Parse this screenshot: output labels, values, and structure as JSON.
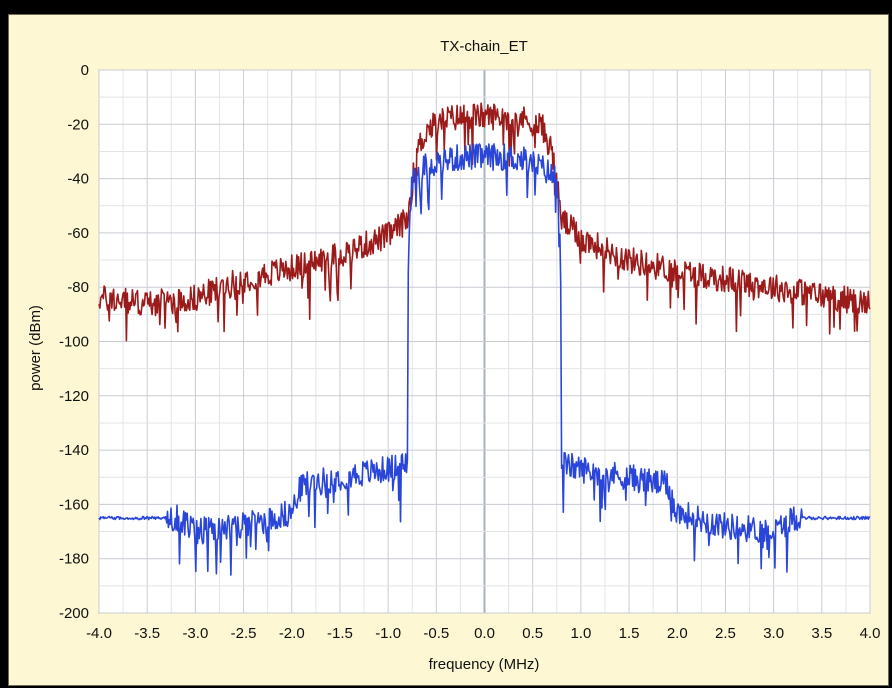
{
  "chart_data": {
    "type": "line",
    "title": "TX-chain_ET",
    "xlabel": "frequency (MHz)",
    "ylabel": "power (dBm)",
    "xlim": [
      -4.0,
      4.0
    ],
    "ylim": [
      -200,
      0
    ],
    "grid": true,
    "x_ticks": [
      -4.0,
      -3.5,
      -3.0,
      -2.5,
      -2.0,
      -1.5,
      -1.0,
      -0.5,
      0.0,
      0.5,
      1.0,
      1.5,
      2.0,
      2.5,
      3.0,
      3.5,
      4.0
    ],
    "x_tick_labels": [
      "-4.0",
      "-3.5",
      "-3.0",
      "-2.5",
      "-2.0",
      "-1.5",
      "-1.0",
      "-0.5",
      "0.0",
      "0.5",
      "1.0",
      "1.5",
      "2.0",
      "2.5",
      "3.0",
      "3.5",
      "4.0"
    ],
    "y_ticks": [
      0,
      -20,
      -40,
      -60,
      -80,
      -100,
      -120,
      -140,
      -160,
      -180,
      -200
    ],
    "y_tick_labels": [
      "0",
      "-20",
      "-40",
      "-60",
      "-80",
      "-100",
      "-120",
      "-140",
      "-160",
      "-180",
      "-200"
    ],
    "series": [
      {
        "color": "#9b1a1a",
        "x": [
          -4.0,
          -3.5,
          -3.0,
          -2.5,
          -2.0,
          -1.5,
          -1.0,
          -0.8,
          -0.75,
          -0.7,
          -0.6,
          -0.4,
          -0.2,
          0.0,
          0.2,
          0.4,
          0.6,
          0.7,
          0.75,
          0.8,
          1.0,
          1.5,
          2.0,
          2.5,
          3.0,
          3.5,
          4.0
        ],
        "y": [
          -84,
          -86,
          -84,
          -77,
          -73,
          -68,
          -61,
          -55,
          -42,
          -30,
          -22,
          -18,
          -17,
          -17,
          -17,
          -18,
          -21,
          -30,
          -42,
          -55,
          -62,
          -70,
          -74,
          -77,
          -80,
          -83,
          -86
        ]
      },
      {
        "color": "#2a46d8",
        "x": [
          -4.0,
          -3.5,
          -3.2,
          -3.0,
          -2.5,
          -2.0,
          -1.9,
          -1.5,
          -1.0,
          -0.8,
          -0.79,
          -0.75,
          -0.6,
          -0.4,
          -0.2,
          0.0,
          0.2,
          0.4,
          0.6,
          0.75,
          0.79,
          0.8,
          1.0,
          1.5,
          1.9,
          2.0,
          2.5,
          3.0,
          3.2,
          3.5,
          4.0
        ],
        "y": [
          -165,
          -165,
          -165,
          -170,
          -168,
          -163,
          -153,
          -150,
          -147,
          -145,
          -65,
          -40,
          -35,
          -33,
          -32,
          -32,
          -32,
          -33,
          -36,
          -40,
          -65,
          -145,
          -147,
          -150,
          -153,
          -163,
          -168,
          -170,
          -165,
          -165,
          -165
        ]
      }
    ]
  }
}
